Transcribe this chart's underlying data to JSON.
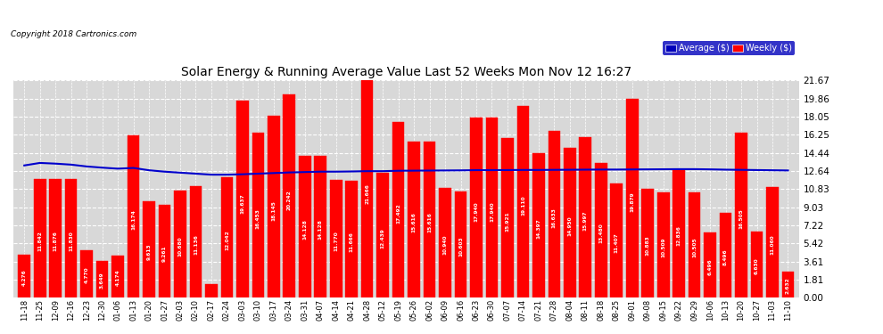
{
  "title": "Solar Energy & Running Average Value Last 52 Weeks Mon Nov 12 16:27",
  "copyright": "Copyright 2018 Cartronics.com",
  "bar_color": "#ff0000",
  "avg_line_color": "#0000cc",
  "background_color": "#ffffff",
  "plot_bg_color": "#d8d8d8",
  "grid_color": "#ffffff",
  "categories": [
    "11-18",
    "11-25",
    "12-09",
    "12-16",
    "12-23",
    "12-30",
    "01-06",
    "01-13",
    "01-20",
    "01-27",
    "02-03",
    "02-10",
    "02-17",
    "02-24",
    "03-03",
    "03-10",
    "03-17",
    "03-24",
    "03-31",
    "04-07",
    "04-14",
    "04-21",
    "04-28",
    "05-12",
    "05-19",
    "05-26",
    "06-02",
    "06-09",
    "06-16",
    "06-23",
    "06-30",
    "07-07",
    "07-14",
    "07-21",
    "07-28",
    "08-04",
    "08-11",
    "08-18",
    "08-25",
    "09-01",
    "09-08",
    "09-15",
    "09-22",
    "09-29",
    "10-06",
    "10-13",
    "10-20",
    "10-27",
    "11-03",
    "11-10"
  ],
  "weekly_values": [
    4.276,
    11.842,
    11.876,
    11.83,
    4.77,
    3.649,
    4.174,
    16.174,
    9.613,
    9.261,
    10.68,
    11.136,
    1.393,
    12.042,
    19.637,
    16.453,
    18.145,
    20.242,
    14.128,
    14.128,
    11.77,
    11.666,
    21.666,
    12.439,
    17.492,
    15.616,
    15.616,
    10.94,
    10.603,
    17.94,
    17.94,
    15.921,
    19.11,
    14.397,
    16.633,
    14.95,
    15.997,
    13.48,
    11.407,
    19.879,
    10.883,
    10.509,
    12.836,
    10.505,
    6.496,
    8.496,
    16.505,
    6.63,
    11.06,
    2.632
  ],
  "avg_values": [
    13.2,
    13.45,
    13.38,
    13.28,
    13.1,
    12.98,
    12.88,
    12.95,
    12.72,
    12.58,
    12.48,
    12.38,
    12.28,
    12.28,
    12.32,
    12.38,
    12.44,
    12.5,
    12.54,
    12.58,
    12.58,
    12.6,
    12.63,
    12.63,
    12.67,
    12.68,
    12.69,
    12.7,
    12.71,
    12.73,
    12.73,
    12.74,
    12.75,
    12.75,
    12.76,
    12.77,
    12.78,
    12.79,
    12.79,
    12.8,
    12.81,
    12.82,
    12.83,
    12.83,
    12.81,
    12.78,
    12.76,
    12.74,
    12.72,
    12.7
  ],
  "ylim": [
    0.0,
    21.67
  ],
  "yticks": [
    0.0,
    1.81,
    3.61,
    5.42,
    7.22,
    9.03,
    10.83,
    12.64,
    14.44,
    16.25,
    18.05,
    19.86,
    21.67
  ],
  "legend_avg_label": "Average ($)",
  "legend_weekly_label": "Weekly ($)",
  "legend_avg_bg": "#0000bb",
  "legend_weekly_bg": "#ff0000"
}
